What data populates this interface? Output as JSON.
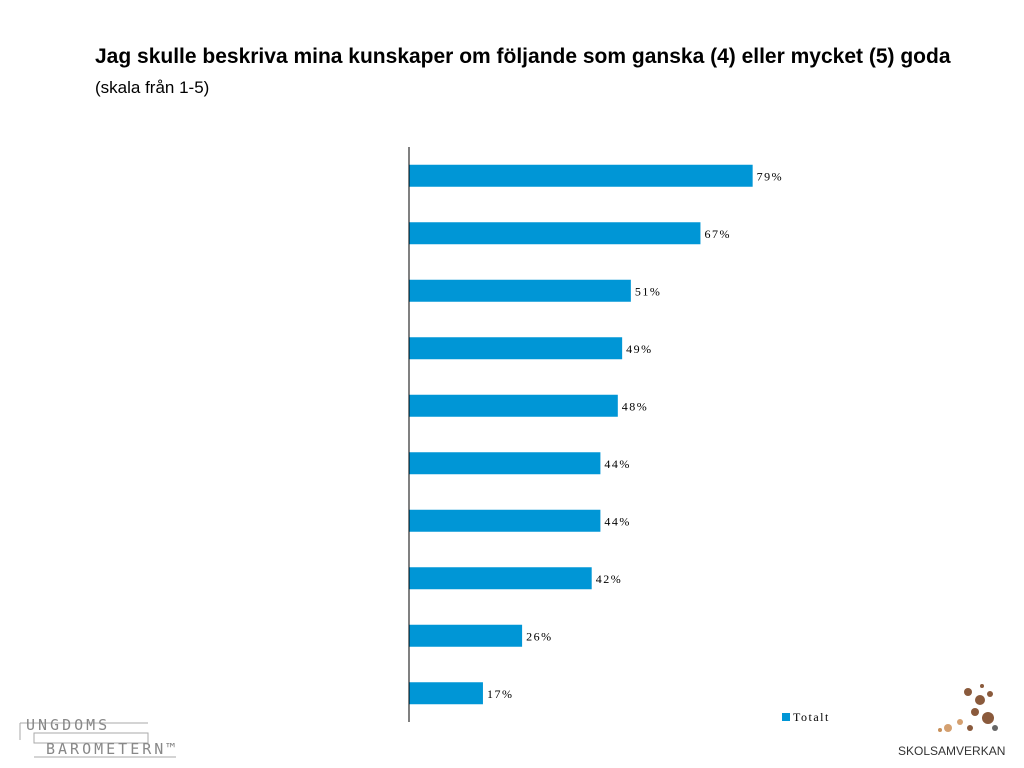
{
  "chart_data": {
    "type": "bar",
    "orientation": "horizontal",
    "title": "Jag skulle beskriva mina kunskaper om följande som ganska (4) eller mycket (5) goda",
    "subtitle": "(skala från 1-5)",
    "categories": [
      null,
      null,
      null,
      null,
      null,
      null,
      null,
      null,
      null,
      null
    ],
    "series": [
      {
        "name": "Totalt",
        "color": "#0096d6",
        "values": [
          79,
          67,
          51,
          49,
          48,
          44,
          44,
          42,
          26,
          17
        ],
        "value_labels": [
          "79%",
          "67%",
          "51%",
          "49%",
          "48%",
          "44%",
          "44%",
          "42%",
          "26%",
          "17%"
        ]
      }
    ],
    "xlim": [
      0,
      100
    ]
  },
  "logos": {
    "left": [
      "UNGDOMS",
      "BAROMETERN™"
    ],
    "right": "SKOLSAMVERKAN"
  }
}
